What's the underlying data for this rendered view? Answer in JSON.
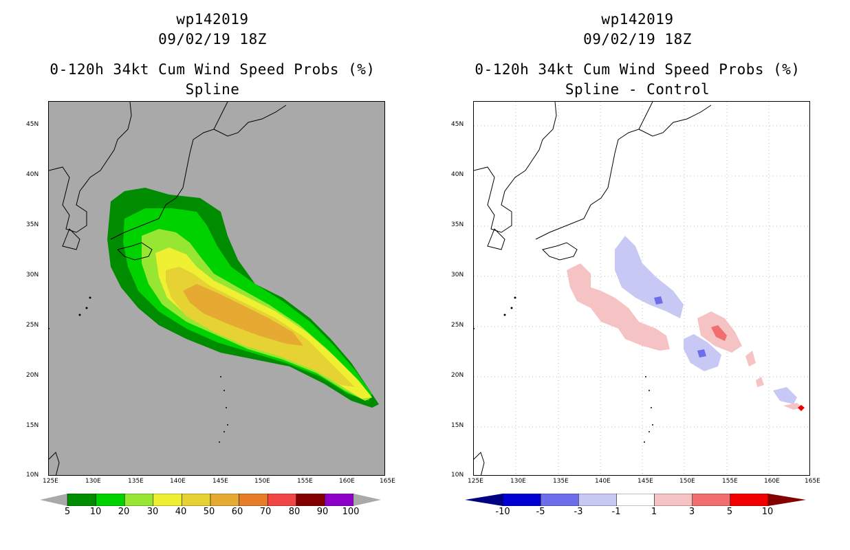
{
  "left_panel": {
    "storm_id": "wp142019",
    "date": "09/02/19 18Z",
    "product": "0-120h 34kt Cum Wind Speed Probs (%)",
    "subtitle": "Spline",
    "colorbar": {
      "labels": [
        "5",
        "10",
        "20",
        "30",
        "40",
        "50",
        "60",
        "70",
        "80",
        "90",
        "100"
      ],
      "colors": [
        "#008c00",
        "#00d200",
        "#96e632",
        "#f0f032",
        "#e6d232",
        "#e6aa32",
        "#e67d28",
        "#f04646",
        "#820000",
        "#8c00c8"
      ]
    },
    "background_color": "#a9a9a9"
  },
  "right_panel": {
    "storm_id": "wp142019",
    "date": "09/02/19 18Z",
    "product": "0-120h 34kt Cum Wind Speed Probs (%)",
    "subtitle": "Spline - Control",
    "colorbar": {
      "labels": [
        "-10",
        "-5",
        "-3",
        "-1",
        "1",
        "3",
        "5",
        "10"
      ],
      "colors": [
        "#0000d2",
        "#6e6eeb",
        "#c8c8f5",
        "#ffffff",
        "#f5c3c3",
        "#f06e6e",
        "#f00000"
      ],
      "end_colors": [
        "#000082",
        "#820000"
      ]
    }
  },
  "axes": {
    "lat_labels": [
      "45N",
      "40N",
      "35N",
      "30N",
      "25N",
      "20N",
      "15N",
      "10N"
    ],
    "lon_labels": [
      "125E",
      "130E",
      "135E",
      "140E",
      "145E",
      "150E",
      "155E",
      "160E",
      "165E"
    ]
  },
  "legend": {
    "pos_color": "#f5c3c3",
    "pos_strong": "#f06e6e",
    "neg_color": "#c8c8f5",
    "neg_strong": "#6e6eeb"
  }
}
